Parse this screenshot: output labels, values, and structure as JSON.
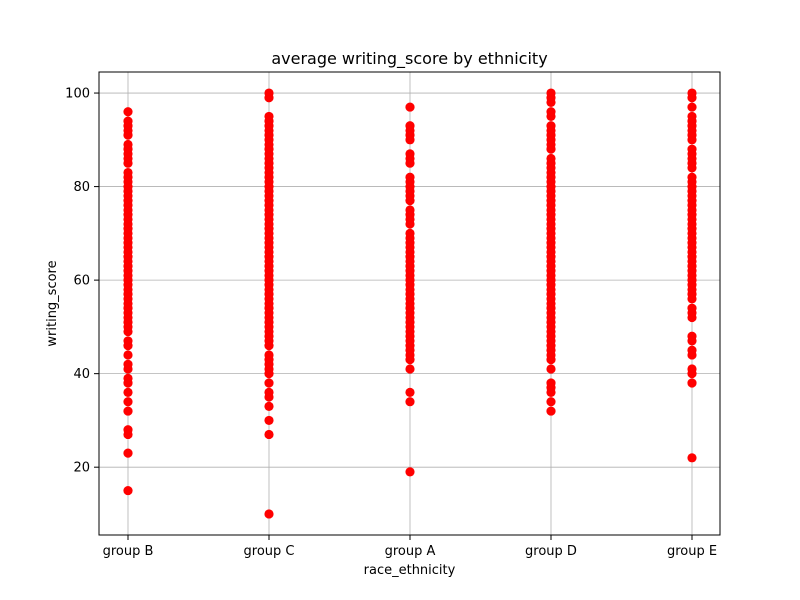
{
  "chart_data": {
    "type": "scatter",
    "title": "average writing_score by ethnicity",
    "xlabel": "race_ethnicity",
    "ylabel": "writing_score",
    "categories": [
      "group B",
      "group C",
      "group A",
      "group D",
      "group E"
    ],
    "ylim": [
      5.5,
      104.5
    ],
    "yticks": [
      20,
      40,
      60,
      80,
      100
    ],
    "grid": true,
    "marker_color": "#ff0000",
    "series": [
      {
        "category": "group B",
        "values": [
          15,
          23,
          27,
          28,
          32,
          34,
          36,
          38,
          39,
          41,
          42,
          44,
          46,
          47,
          49,
          50,
          51,
          52,
          53,
          54,
          55,
          56,
          57,
          58,
          59,
          60,
          61,
          62,
          63,
          64,
          65,
          66,
          67,
          68,
          69,
          70,
          71,
          72,
          73,
          74,
          75,
          76,
          77,
          78,
          79,
          80,
          81,
          82,
          83,
          85,
          86,
          87,
          88,
          89,
          91,
          92,
          93,
          94,
          96
        ]
      },
      {
        "category": "group C",
        "values": [
          10,
          27,
          30,
          33,
          35,
          36,
          38,
          40,
          41,
          42,
          43,
          44,
          46,
          47,
          48,
          49,
          50,
          51,
          52,
          53,
          54,
          55,
          56,
          57,
          58,
          59,
          60,
          61,
          62,
          63,
          64,
          65,
          66,
          67,
          68,
          69,
          70,
          71,
          72,
          73,
          74,
          75,
          76,
          77,
          78,
          79,
          80,
          81,
          82,
          83,
          84,
          85,
          86,
          87,
          88,
          89,
          90,
          91,
          92,
          93,
          94,
          95,
          99,
          100
        ]
      },
      {
        "category": "group A",
        "values": [
          19,
          34,
          36,
          41,
          43,
          44,
          45,
          46,
          47,
          48,
          49,
          50,
          51,
          52,
          53,
          54,
          55,
          56,
          57,
          58,
          59,
          60,
          61,
          62,
          63,
          64,
          65,
          66,
          67,
          68,
          69,
          70,
          72,
          73,
          74,
          75,
          77,
          78,
          79,
          80,
          81,
          82,
          85,
          86,
          87,
          90,
          91,
          92,
          93,
          97
        ]
      },
      {
        "category": "group D",
        "values": [
          32,
          34,
          36,
          37,
          38,
          41,
          43,
          44,
          45,
          46,
          47,
          48,
          49,
          50,
          51,
          52,
          53,
          54,
          55,
          56,
          57,
          58,
          59,
          60,
          61,
          62,
          63,
          64,
          65,
          66,
          67,
          68,
          69,
          70,
          71,
          72,
          73,
          74,
          75,
          76,
          77,
          78,
          79,
          80,
          81,
          82,
          83,
          84,
          85,
          86,
          88,
          89,
          90,
          91,
          92,
          93,
          95,
          96,
          98,
          99,
          100
        ]
      },
      {
        "category": "group E",
        "values": [
          22,
          38,
          40,
          41,
          44,
          45,
          47,
          48,
          52,
          53,
          54,
          56,
          57,
          58,
          59,
          60,
          61,
          62,
          63,
          64,
          65,
          66,
          67,
          68,
          69,
          70,
          71,
          72,
          73,
          74,
          75,
          76,
          77,
          78,
          79,
          80,
          81,
          82,
          84,
          85,
          86,
          87,
          88,
          90,
          91,
          92,
          93,
          94,
          95,
          97,
          99,
          100
        ]
      }
    ]
  }
}
